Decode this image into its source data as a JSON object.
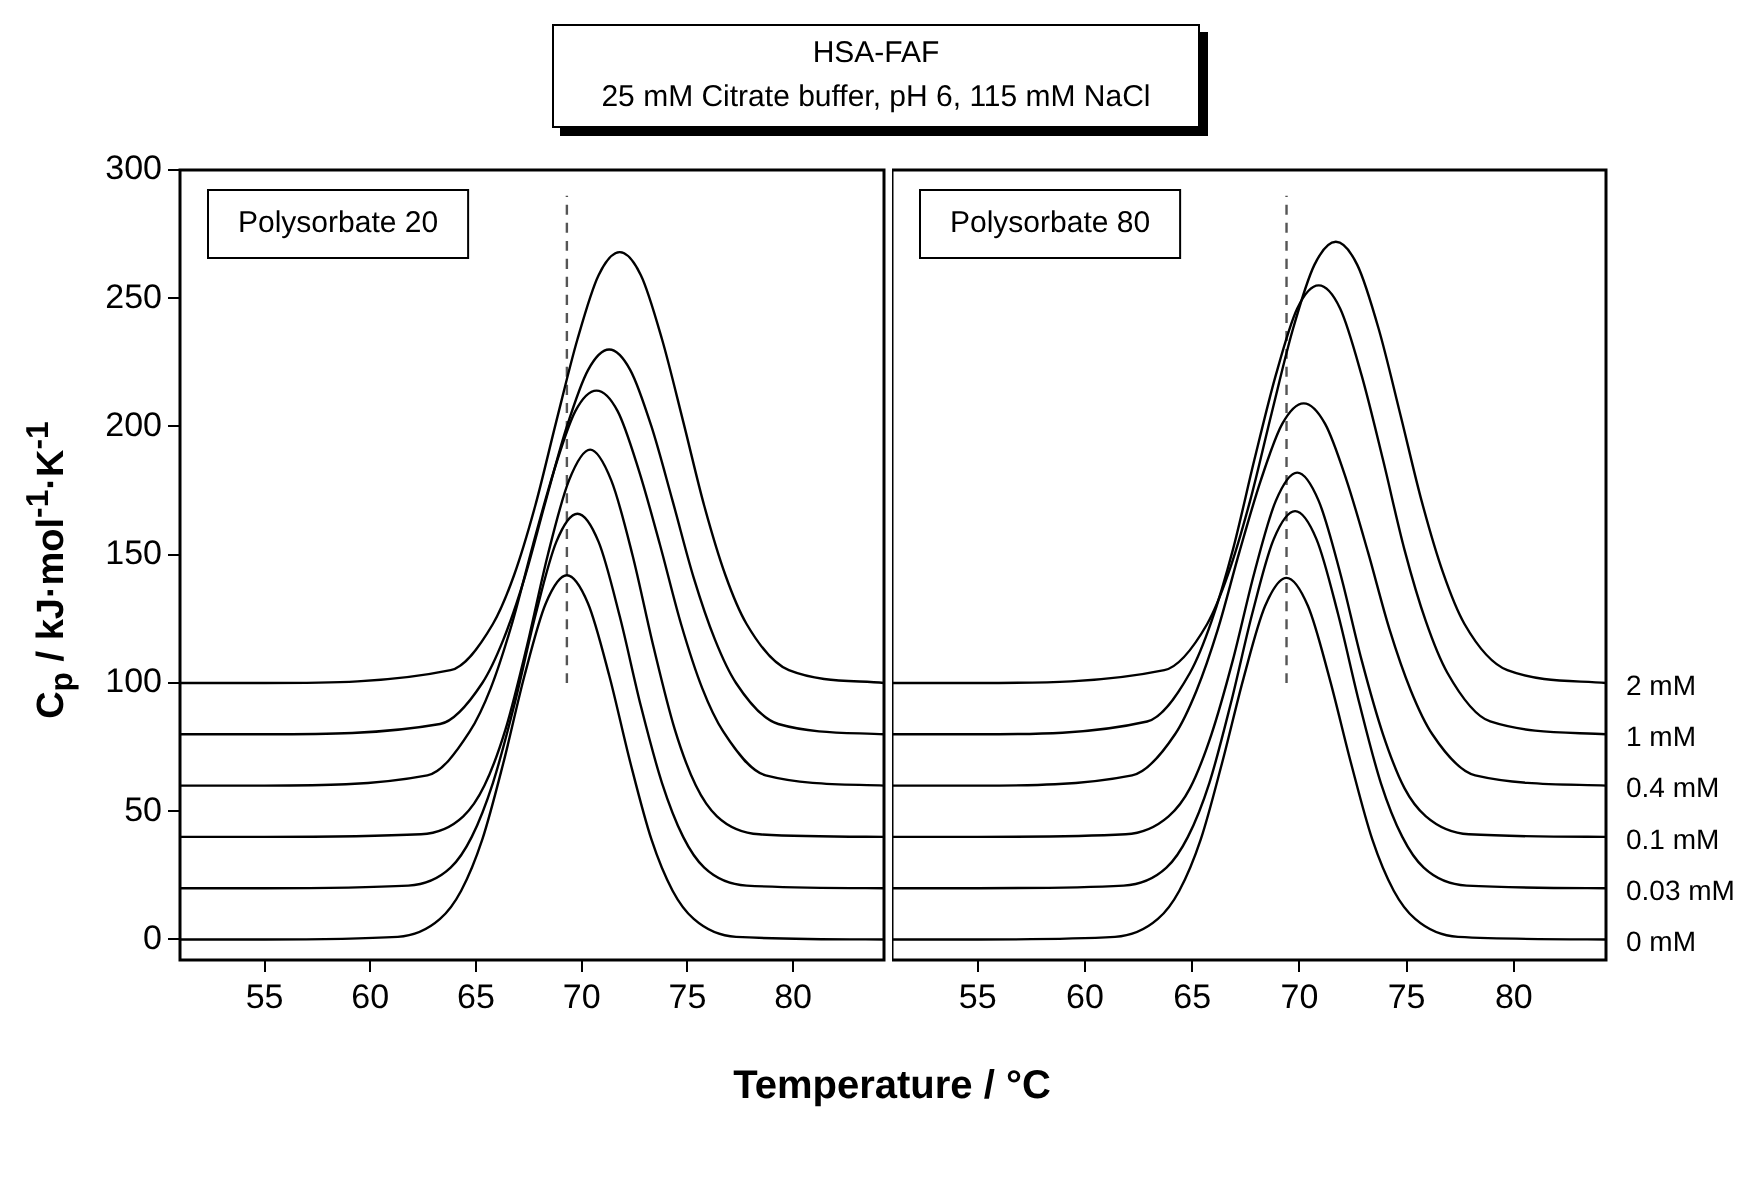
{
  "chart_data": [
    {
      "type": "line",
      "title": "HSA-FAF",
      "subtitle": "25 mM Citrate buffer, pH 6, 115 mM NaCl",
      "xlabel": "Temperature / °C",
      "ylabel": "C$_{p}$ / kJ·mol$^{-1}$·K$^{-1}$",
      "annotations": [
        "Polysorbate 20"
      ],
      "xlim": [
        51,
        84.3
      ],
      "ylim": [
        -8,
        300
      ],
      "xticks": [
        55,
        60,
        65,
        70,
        75,
        80
      ],
      "yticks": [
        0,
        50,
        100,
        150,
        200,
        250,
        300
      ],
      "series": [
        {
          "color": "#000000",
          "x": [
            51,
            55,
            61.3,
            63.3,
            64.3,
            65.3,
            66.3,
            67.3,
            68.3,
            69.3,
            70.3,
            71.3,
            72.3,
            73.3,
            74.3,
            75.3,
            77.3,
            84.3
          ],
          "values": [
            0,
            0,
            1,
            8,
            19,
            39,
            69,
            103,
            131,
            142,
            131,
            103,
            69,
            39,
            19,
            8,
            1,
            0
          ]
        },
        {
          "color": "#000000",
          "x": [
            51,
            55,
            61.8,
            63.8,
            64.8,
            65.8,
            66.8,
            67.8,
            68.8,
            69.8,
            70.8,
            71.8,
            72.8,
            73.8,
            74.8,
            75.8,
            77.8,
            84.3
          ],
          "values": [
            20,
            20,
            21,
            28,
            40,
            61,
            91,
            126,
            155,
            166,
            155,
            126,
            91,
            61,
            40,
            28,
            21,
            20
          ]
        },
        {
          "color": "#000000",
          "x": [
            51,
            55,
            62.4,
            64.4,
            65.4,
            66.4,
            67.4,
            68.4,
            69.4,
            70.4,
            71.4,
            72.4,
            73.4,
            74.4,
            75.4,
            76.4,
            78.4,
            84.3
          ],
          "values": [
            40,
            40,
            41,
            48,
            60,
            82,
            114,
            150,
            179,
            191,
            179,
            150,
            114,
            82,
            60,
            48,
            41,
            40
          ]
        },
        {
          "color": "#000000",
          "x": [
            51,
            55,
            62.7,
            64.7,
            65.7,
            66.7,
            67.7,
            68.7,
            69.7,
            70.7,
            71.7,
            72.7,
            73.7,
            74.7,
            75.7,
            76.7,
            78.7,
            84.3
          ],
          "values": [
            60,
            60,
            64,
            81,
            98,
            123,
            154,
            183,
            206,
            214,
            206,
            183,
            154,
            123,
            98,
            81,
            64,
            60
          ]
        },
        {
          "color": "#000000",
          "x": [
            51,
            55,
            63.3,
            65.3,
            66.3,
            67.3,
            68.3,
            69.3,
            70.3,
            71.3,
            72.3,
            73.3,
            74.3,
            75.3,
            76.3,
            77.3,
            79.3,
            84.3
          ],
          "values": [
            80,
            80,
            84,
            100,
            117,
            141,
            171,
            200,
            222,
            230,
            222,
            200,
            171,
            141,
            117,
            100,
            84,
            80
          ]
        },
        {
          "color": "#000000",
          "x": [
            51,
            55,
            63.8,
            65.8,
            66.8,
            67.8,
            68.8,
            69.8,
            70.8,
            71.8,
            72.8,
            73.8,
            74.8,
            75.8,
            76.8,
            77.8,
            79.8,
            84.3
          ],
          "values": [
            100,
            100,
            105,
            123,
            142,
            169,
            202,
            234,
            259,
            268,
            259,
            234,
            202,
            169,
            142,
            123,
            105,
            100
          ]
        },
        {
          "color": "#555555",
          "line_style": "dashed",
          "x": [
            69.3,
            69.3
          ],
          "values": [
            100,
            290
          ]
        }
      ]
    },
    {
      "type": "line",
      "annotations": [
        "Polysorbate 80"
      ],
      "tick_labels": "x",
      "xlim": [
        51,
        84.3
      ],
      "ylim": [
        -8,
        300
      ],
      "xticks": [
        55,
        60,
        65,
        70,
        75,
        80
      ],
      "series": [
        {
          "name": "0 mM",
          "color": "#000000",
          "x": [
            51,
            55,
            61.4,
            63.4,
            64.4,
            65.4,
            66.4,
            67.4,
            68.4,
            69.4,
            70.4,
            71.4,
            72.4,
            73.4,
            74.4,
            75.4,
            77.4,
            84.3
          ],
          "values": [
            0,
            0,
            1,
            8,
            19,
            39,
            69,
            102,
            130,
            141,
            130,
            102,
            69,
            39,
            19,
            8,
            1,
            0
          ]
        },
        {
          "name": "0.03 mM",
          "color": "#000000",
          "x": [
            51,
            55,
            61.8,
            63.8,
            64.8,
            65.8,
            66.8,
            67.8,
            68.8,
            69.8,
            70.8,
            71.8,
            72.8,
            73.8,
            74.8,
            75.8,
            77.8,
            84.3
          ],
          "values": [
            20,
            20,
            21,
            28,
            40,
            61,
            92,
            127,
            156,
            167,
            156,
            127,
            92,
            61,
            40,
            28,
            21,
            20
          ]
        },
        {
          "name": "0.1 mM",
          "color": "#000000",
          "x": [
            51,
            55,
            61.9,
            63.9,
            64.9,
            65.9,
            66.9,
            67.9,
            68.9,
            69.9,
            70.9,
            71.9,
            72.9,
            73.9,
            74.9,
            75.9,
            77.9,
            84.3
          ],
          "values": [
            40,
            40,
            41,
            48,
            59,
            80,
            109,
            143,
            171,
            182,
            171,
            143,
            109,
            80,
            59,
            48,
            41,
            40
          ]
        },
        {
          "name": "0.4 mM",
          "color": "#000000",
          "x": [
            51,
            55,
            62.2,
            64.2,
            65.2,
            66.2,
            67.2,
            68.2,
            69.2,
            70.2,
            71.2,
            72.2,
            73.2,
            74.2,
            75.2,
            76.2,
            78.2,
            84.3
          ],
          "values": [
            60,
            60,
            64,
            80,
            97,
            121,
            151,
            179,
            201,
            209,
            201,
            179,
            151,
            121,
            97,
            80,
            64,
            60
          ]
        },
        {
          "name": "1 mM",
          "color": "#000000",
          "x": [
            51,
            55,
            62.9,
            64.9,
            65.9,
            66.9,
            67.9,
            68.9,
            69.9,
            70.9,
            71.9,
            72.9,
            73.9,
            74.9,
            75.9,
            76.9,
            78.9,
            84.3
          ],
          "values": [
            80,
            80,
            85,
            104,
            124,
            152,
            187,
            220,
            246,
            255,
            246,
            220,
            187,
            152,
            124,
            104,
            85,
            80
          ]
        },
        {
          "name": "2 mM",
          "color": "#000000",
          "x": [
            51,
            55,
            63.7,
            65.7,
            66.7,
            67.7,
            68.7,
            69.7,
            70.7,
            71.7,
            72.7,
            73.7,
            74.7,
            75.7,
            76.7,
            77.7,
            79.7,
            84.3
          ],
          "values": [
            100,
            100,
            105,
            123,
            143,
            171,
            205,
            238,
            263,
            272,
            263,
            238,
            205,
            171,
            143,
            123,
            105,
            100
          ]
        },
        {
          "color": "#555555",
          "line_style": "dashed",
          "x": [
            69.4,
            69.4
          ],
          "values": [
            100,
            290
          ]
        }
      ]
    }
  ]
}
